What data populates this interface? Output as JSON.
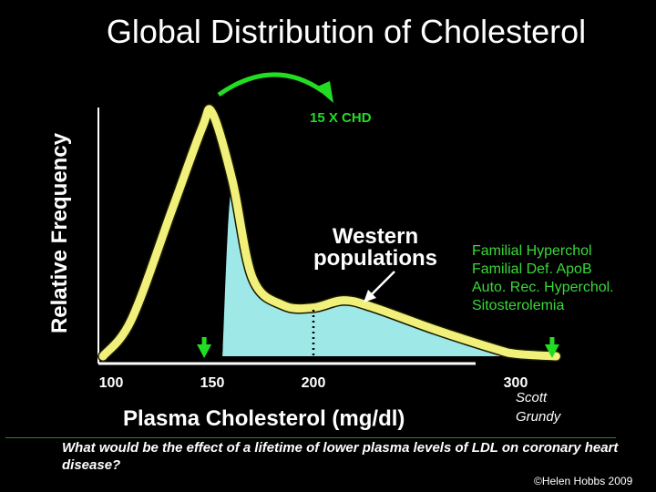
{
  "chart_data": {
    "type": "line",
    "title": "Global Distribution of Cholesterol",
    "xlabel": "Plasma Cholesterol (mg/dl)",
    "ylabel": "Relative Frequency",
    "x_ticks": [
      100,
      150,
      200,
      300
    ],
    "xlim": [
      95,
      325
    ],
    "series": [
      {
        "x": [
          96,
          110,
          130,
          145,
          150,
          160,
          170,
          185,
          200,
          215,
          230,
          260,
          290,
          300,
          320
        ],
        "y": [
          0,
          0.15,
          0.6,
          0.94,
          1.0,
          0.72,
          0.32,
          0.21,
          0.2,
          0.23,
          0.2,
          0.11,
          0.03,
          0.01,
          0
        ]
      }
    ],
    "dotted_line_x": 200,
    "markers": [
      {
        "x": 155,
        "color": "#22dd22"
      },
      {
        "x": 327,
        "color": "#22dd22"
      }
    ],
    "arrow_label": "15 X CHD",
    "annotation": "Western populations",
    "curve_color": "#f0f07a",
    "fill_color": "#9ee8e8",
    "grid": false
  },
  "disorders": [
    "Familial Hyperchol",
    "Familial Def. ApoB",
    "Auto. Rec. Hyperchol.",
    "Sitosterolemia"
  ],
  "attribution": [
    "Scott",
    "Grundy"
  ],
  "question": "What would be the effect of a lifetime of lower plasma levels of LDL on coronary heart disease?",
  "copyright": "©Helen Hobbs 2009"
}
